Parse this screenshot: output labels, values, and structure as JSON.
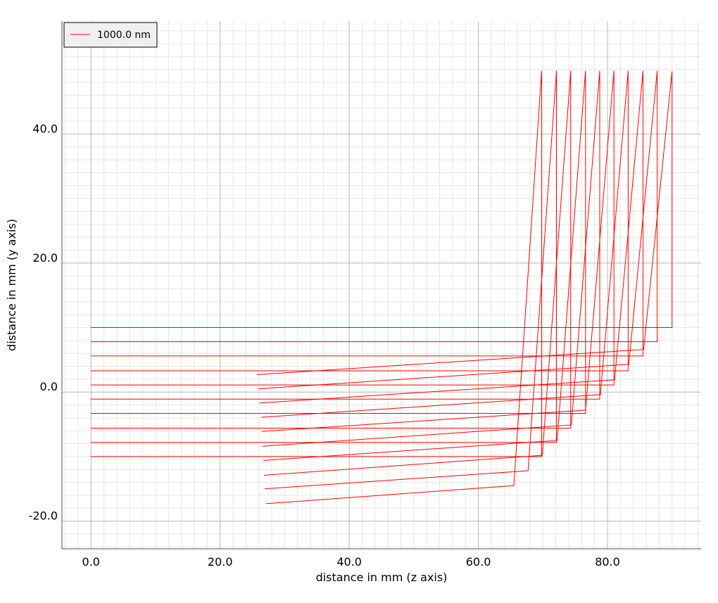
{
  "chart_data": {
    "type": "line",
    "x_label": "distance in mm (z axis)",
    "y_label": "distance in mm (y axis)",
    "legend": {
      "label": "1000.0 nm",
      "corner": "upper left"
    },
    "color": "#ff0000",
    "grid": true,
    "minor_grid_step": 2,
    "xlim": [
      -4.5,
      94.5
    ],
    "ylim": [
      -24.3,
      57.5
    ],
    "xticks": [
      {
        "value": 0,
        "label": "0.0"
      },
      {
        "value": 20,
        "label": "20.0"
      },
      {
        "value": 40,
        "label": "40.0"
      },
      {
        "value": 60,
        "label": "60.0"
      },
      {
        "value": 80,
        "label": "80.0"
      }
    ],
    "yticks": [
      {
        "value": -20,
        "label": "-20.0"
      },
      {
        "value": 0,
        "label": "0.0"
      },
      {
        "value": 20,
        "label": "20.0"
      },
      {
        "value": 40,
        "label": "40.0"
      }
    ],
    "series": [
      {
        "x": [
          0,
          69.8,
          69.8,
          65.5,
          27.1
        ],
        "values": [
          -10,
          -10,
          49.8,
          -14.5,
          -17.3
        ]
      },
      {
        "x": [
          0,
          72.1,
          72.1,
          67.7,
          26.9
        ],
        "values": [
          -7.8,
          -7.8,
          49.8,
          -12.2,
          -15.0
        ]
      },
      {
        "x": [
          0,
          74.3,
          74.3,
          69.9,
          26.8
        ],
        "values": [
          -5.6,
          -5.6,
          49.8,
          -9.8,
          -12.9
        ]
      },
      {
        "x": [
          0,
          76.6,
          76.6,
          72.2,
          26.7
        ],
        "values": [
          -3.3,
          -3.3,
          49.8,
          -7.5,
          -10.6
        ]
      },
      {
        "x": [
          0,
          78.8,
          78.8,
          74.4,
          26.6
        ],
        "values": [
          -1.1,
          -1.1,
          49.8,
          -5.1,
          -8.4
        ]
      },
      {
        "x": [
          0,
          81.0,
          81.0,
          76.6,
          26.5
        ],
        "values": [
          1.1,
          1.1,
          49.8,
          -2.8,
          -6.1
        ]
      },
      {
        "x": [
          0,
          83.2,
          83.2,
          78.9,
          26.4
        ],
        "values": [
          3.3,
          3.3,
          49.8,
          -0.4,
          -3.9
        ]
      },
      {
        "x": [
          0,
          85.5,
          85.5,
          81.1,
          26.1
        ],
        "values": [
          5.6,
          5.6,
          49.8,
          1.9,
          -1.7
        ]
      },
      {
        "x": [
          0,
          87.7,
          87.7,
          83.3,
          25.9
        ],
        "values": [
          7.8,
          7.8,
          49.8,
          4.3,
          0.5
        ]
      },
      {
        "x": [
          0,
          90.0,
          90.0,
          85.6,
          25.7
        ],
        "values": [
          10,
          10,
          49.7,
          6.6,
          2.7
        ]
      }
    ]
  }
}
